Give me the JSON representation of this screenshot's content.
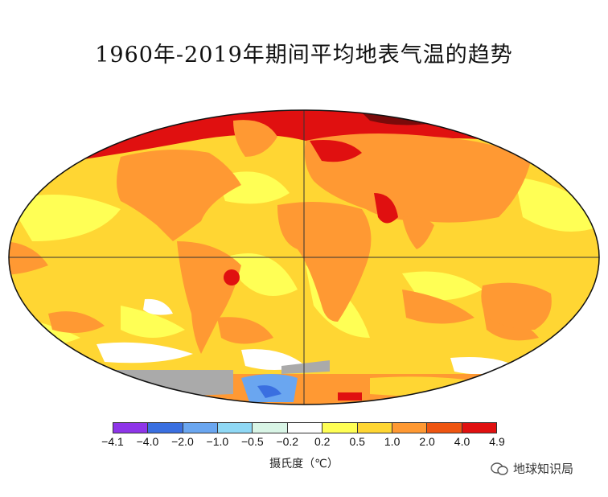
{
  "title": "1960年-2019年期间平均地表气温的趋势",
  "legend": {
    "colors": [
      "#8e35e8",
      "#3a6fe0",
      "#6aa6f0",
      "#8fd8f5",
      "#d9f5e6",
      "#ffffff",
      "#ffff55",
      "#ffd633",
      "#ff9933",
      "#ee5511",
      "#e01010",
      "#7a0a0a"
    ],
    "ticks": [
      "−4.1",
      "−4.0",
      "−2.0",
      "−1.0",
      "−0.5",
      "−0.2",
      "0.2",
      "0.5",
      "1.0",
      "2.0",
      "4.0",
      "4.9"
    ],
    "unit_label": "摄氏度（℃）"
  },
  "watermark": {
    "text": "地球知识局"
  }
}
